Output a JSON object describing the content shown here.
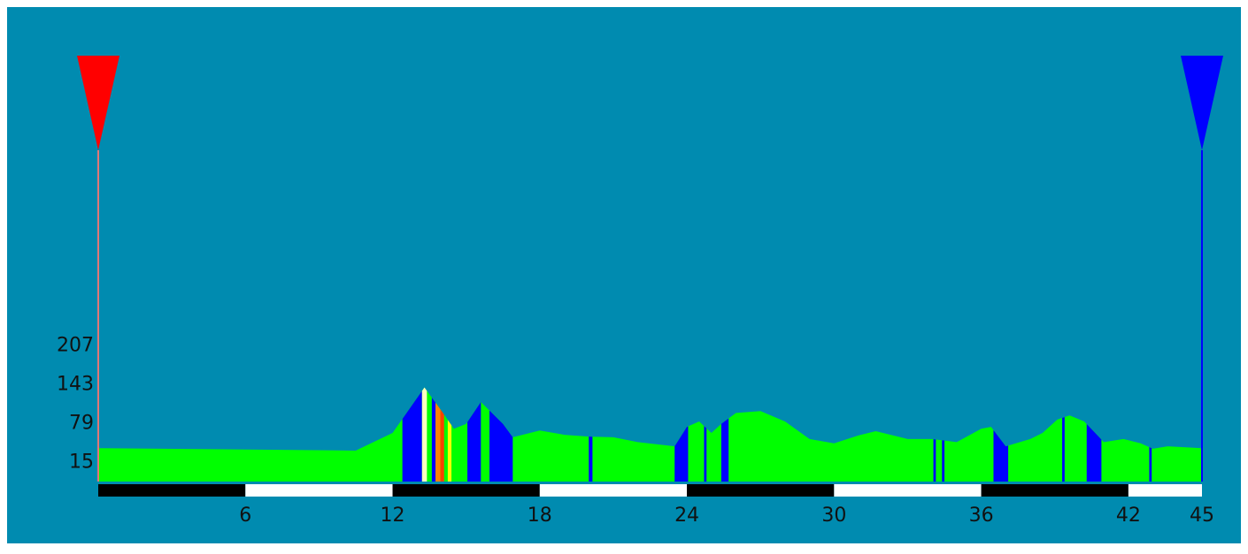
{
  "chart_data": {
    "type": "area",
    "x": [
      0,
      10.5,
      12,
      13.3,
      14,
      14.5,
      15,
      15.6,
      16.5,
      16.9,
      18,
      19,
      20,
      21,
      22,
      23.5,
      24,
      24.5,
      25,
      25.4,
      26,
      27,
      28,
      29,
      30,
      31,
      31.7,
      33,
      34,
      35,
      36,
      36.4,
      37,
      38,
      38.5,
      39.1,
      39.6,
      40.2,
      41,
      41.8,
      42.5,
      43,
      43.6,
      45
    ],
    "values": [
      55,
      51,
      80,
      155,
      116,
      87,
      95,
      131,
      95,
      73,
      84,
      77,
      74,
      73,
      65,
      58,
      90,
      99,
      80,
      95,
      113,
      116,
      99,
      70,
      63,
      76,
      83,
      70,
      70,
      65,
      87,
      90,
      58,
      70,
      80,
      102,
      109,
      99,
      65,
      70,
      63,
      54,
      58,
      55
    ],
    "color": "#00ff00",
    "bands": [
      {
        "x": [
          12.4,
          13.2
        ],
        "color": "#0000ff"
      },
      {
        "x": [
          13.2,
          13.4
        ],
        "color": "#ffffc0"
      },
      {
        "x": [
          13.6,
          13.75
        ],
        "color": "#0000ff"
      },
      {
        "x": [
          13.75,
          13.95
        ],
        "color": "#ff8000"
      },
      {
        "x": [
          13.95,
          14.1
        ],
        "color": "#ff4000"
      },
      {
        "x": [
          14.25,
          14.4
        ],
        "color": "#ffff00"
      },
      {
        "x": [
          15.05,
          15.6
        ],
        "color": "#0000ff"
      },
      {
        "x": [
          15.95,
          16.9
        ],
        "color": "#0000ff"
      },
      {
        "x": [
          20,
          20.15
        ],
        "color": "#0000ff"
      },
      {
        "x": [
          23.5,
          24.05
        ],
        "color": "#0000ff"
      },
      {
        "x": [
          24.7,
          24.8
        ],
        "color": "#0000ff"
      },
      {
        "x": [
          25.4,
          25.7
        ],
        "color": "#0000ff"
      },
      {
        "x": [
          34.05,
          34.15
        ],
        "color": "#0000ff"
      },
      {
        "x": [
          34.4,
          34.5
        ],
        "color": "#0000ff"
      },
      {
        "x": [
          36.5,
          37.1
        ],
        "color": "#0000ff"
      },
      {
        "x": [
          39.3,
          39.4
        ],
        "color": "#0000ff"
      },
      {
        "x": [
          40.3,
          40.9
        ],
        "color": "#0000ff"
      },
      {
        "x": [
          42.85,
          42.95
        ],
        "color": "#0000ff"
      }
    ],
    "markers": [
      {
        "x": 0,
        "color": "#ff0000",
        "line_color": "#e07878"
      },
      {
        "x": 45,
        "color": "#0000ff",
        "line_color": "#0000ff"
      }
    ],
    "xlim": [
      0,
      45
    ],
    "xticks": [
      6,
      12,
      18,
      24,
      30,
      36,
      42,
      45
    ],
    "scale_colors": [
      "#000000",
      "#ffffff"
    ],
    "ylim": [
      0,
      600
    ],
    "yticks": [
      15,
      79,
      143,
      207
    ],
    "grid": false
  }
}
